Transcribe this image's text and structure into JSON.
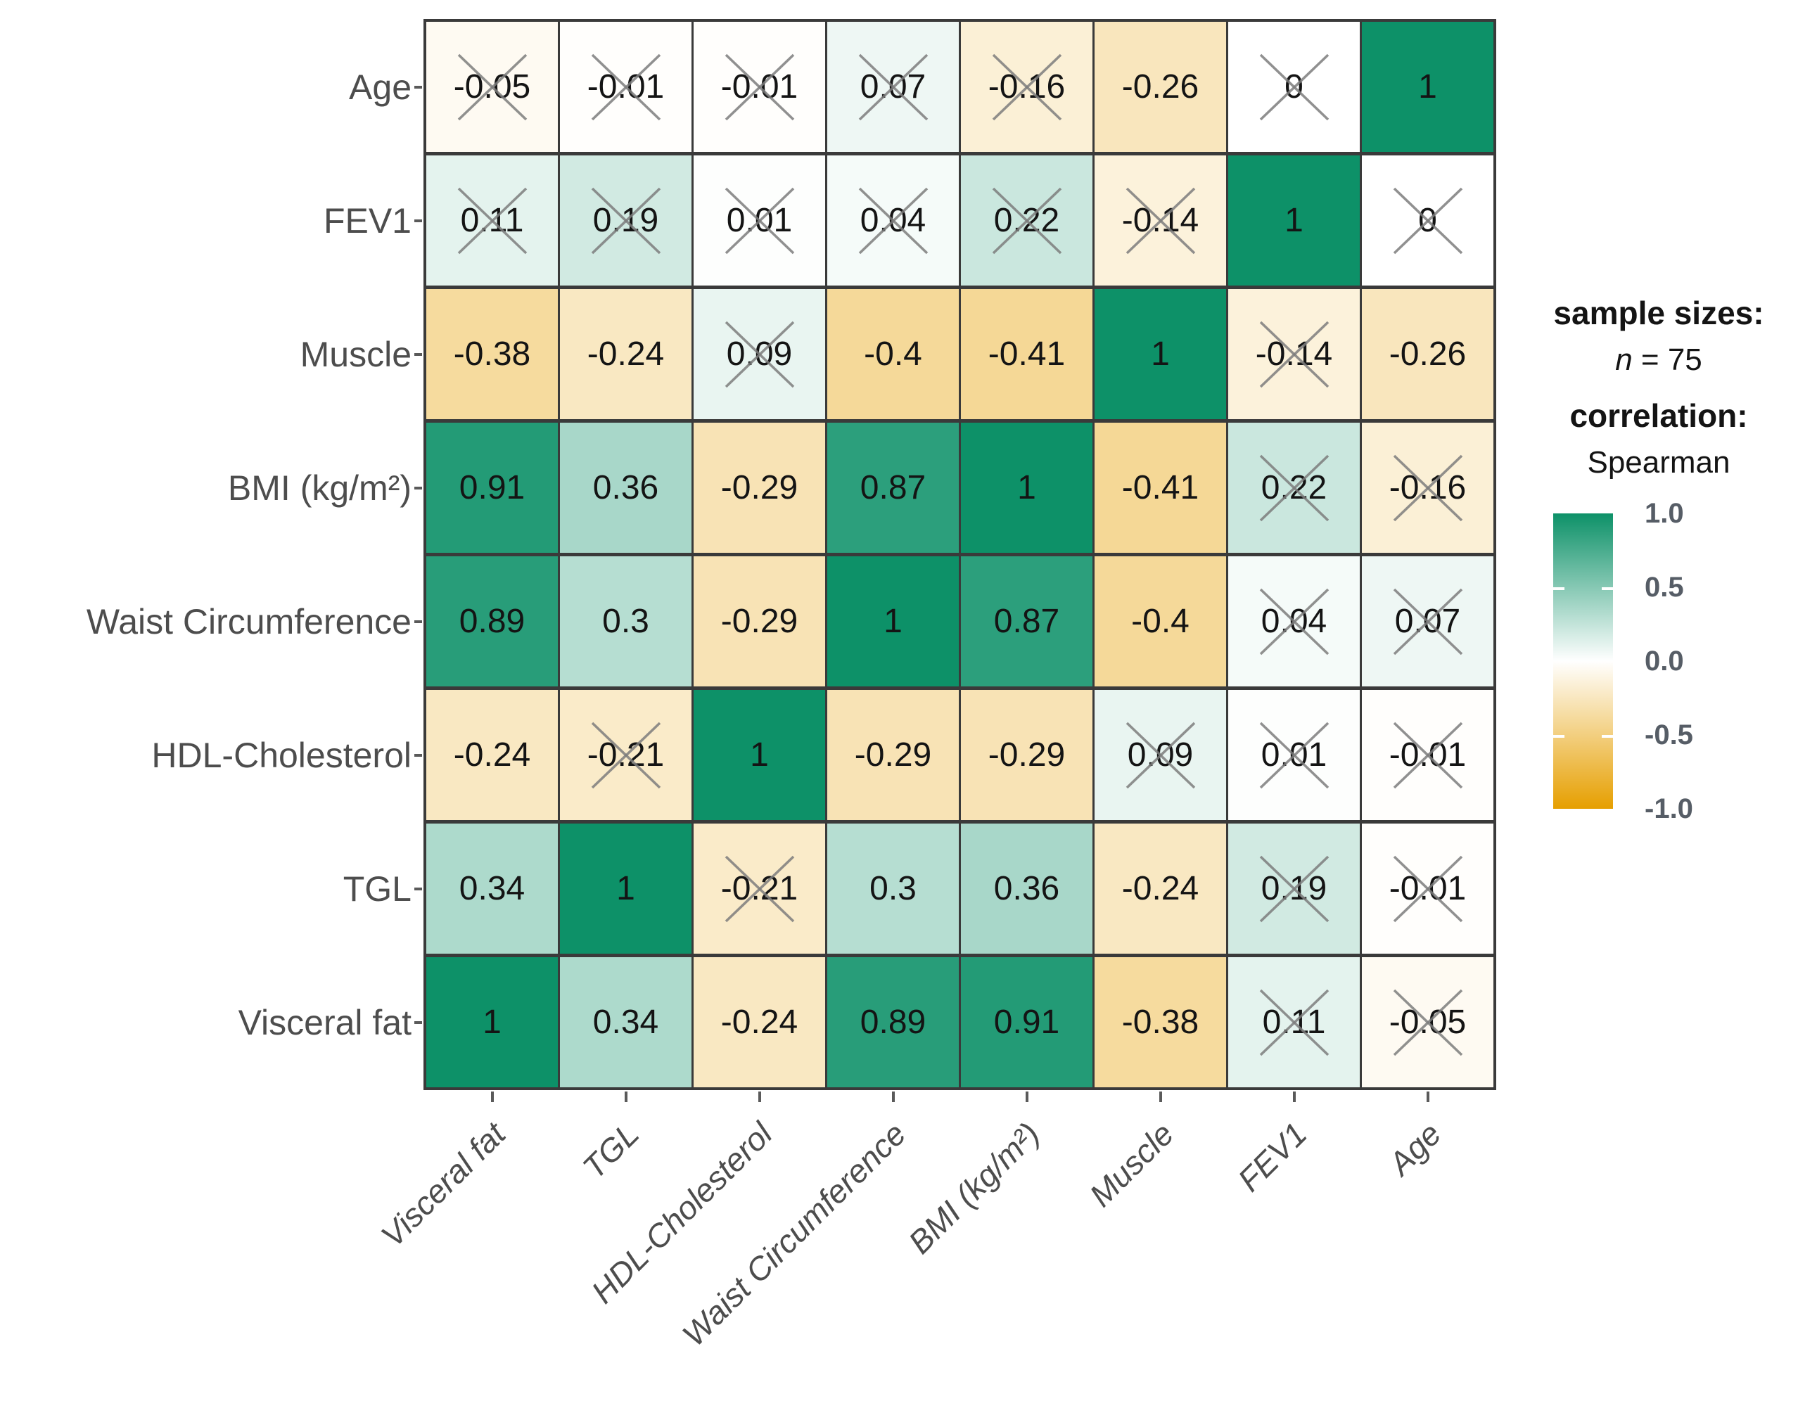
{
  "legend": {
    "sample_sizes_label": "sample sizes:",
    "n_symbol": "n",
    "n_rest": " = 75",
    "correlation_label": "correlation:",
    "method": "Spearman",
    "colorbar_ticks": [
      "1.0",
      "0.5",
      "0.0",
      "-0.5",
      "-1.0"
    ]
  },
  "chart_data": {
    "type": "heatmap",
    "title": "",
    "correlation_method": "Spearman",
    "sample_size": 75,
    "colorbar": {
      "range": [
        -1,
        1
      ],
      "positive_color": "#0D9168",
      "zero_color": "#FFFFFF",
      "negative_color": "#E69F00",
      "tick_labels": [
        "1.0",
        "0.5",
        "0.0",
        "-0.5",
        "-1.0"
      ],
      "legend_position": "right"
    },
    "grid_line_color": "#3a3a3a",
    "x_labels": [
      "Visceral fat",
      "TGL",
      "HDL-Cholesterol",
      "Waist Circumference",
      "BMI (kg/m²)",
      "Muscle",
      "FEV1",
      "Age"
    ],
    "y_labels_top_to_bottom": [
      "Age",
      "FEV1",
      "Muscle",
      "BMI (kg/m²)",
      "Waist Circumference",
      "HDL-Cholesterol",
      "TGL",
      "Visceral fat"
    ],
    "crossed_cells_note": "X drawn over value",
    "rows": [
      {
        "label": "Age",
        "values": [
          -0.05,
          -0.01,
          -0.01,
          0.07,
          -0.16,
          -0.26,
          0,
          1
        ],
        "crossed": [
          true,
          true,
          true,
          true,
          true,
          false,
          true,
          false
        ]
      },
      {
        "label": "FEV1",
        "values": [
          0.11,
          0.19,
          0.01,
          0.04,
          0.22,
          -0.14,
          1,
          0
        ],
        "crossed": [
          true,
          true,
          true,
          true,
          true,
          true,
          false,
          true
        ]
      },
      {
        "label": "Muscle",
        "values": [
          -0.38,
          -0.24,
          0.09,
          -0.4,
          -0.41,
          1,
          -0.14,
          -0.26
        ],
        "crossed": [
          false,
          false,
          true,
          false,
          false,
          false,
          true,
          false
        ]
      },
      {
        "label": "BMI (kg/m²)",
        "values": [
          0.91,
          0.36,
          -0.29,
          0.87,
          1,
          -0.41,
          0.22,
          -0.16
        ],
        "crossed": [
          false,
          false,
          false,
          false,
          false,
          false,
          true,
          true
        ]
      },
      {
        "label": "Waist Circumference",
        "values": [
          0.89,
          0.3,
          -0.29,
          1,
          0.87,
          -0.4,
          0.04,
          0.07
        ],
        "crossed": [
          false,
          false,
          false,
          false,
          false,
          false,
          true,
          true
        ]
      },
      {
        "label": "HDL-Cholesterol",
        "values": [
          -0.24,
          -0.21,
          1,
          -0.29,
          -0.29,
          0.09,
          0.01,
          -0.01
        ],
        "crossed": [
          false,
          true,
          false,
          false,
          false,
          true,
          true,
          true
        ]
      },
      {
        "label": "TGL",
        "values": [
          0.34,
          1,
          -0.21,
          0.3,
          0.36,
          -0.24,
          0.19,
          -0.01
        ],
        "crossed": [
          false,
          false,
          true,
          false,
          false,
          false,
          true,
          true
        ]
      },
      {
        "label": "Visceral fat",
        "values": [
          1,
          0.34,
          -0.24,
          0.89,
          0.91,
          -0.38,
          0.11,
          -0.05
        ],
        "crossed": [
          false,
          false,
          false,
          false,
          false,
          false,
          true,
          true
        ]
      }
    ]
  }
}
